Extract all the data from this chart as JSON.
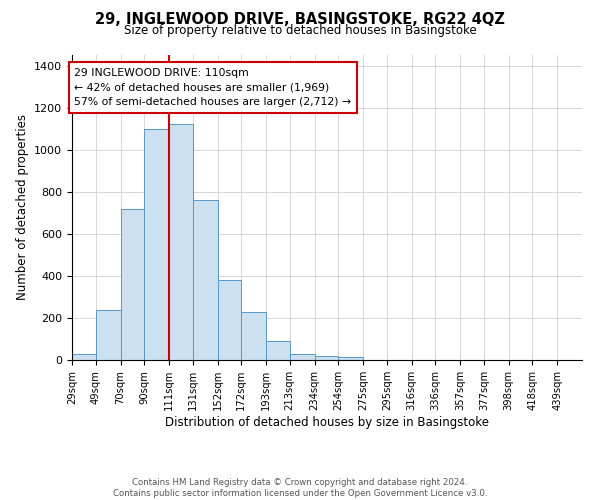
{
  "title": "29, INGLEWOOD DRIVE, BASINGSTOKE, RG22 4QZ",
  "subtitle": "Size of property relative to detached houses in Basingstoke",
  "xlabel": "Distribution of detached houses by size in Basingstoke",
  "ylabel": "Number of detached properties",
  "bin_labels": [
    "29sqm",
    "49sqm",
    "70sqm",
    "90sqm",
    "111sqm",
    "131sqm",
    "152sqm",
    "172sqm",
    "193sqm",
    "213sqm",
    "234sqm",
    "254sqm",
    "275sqm",
    "295sqm",
    "316sqm",
    "336sqm",
    "357sqm",
    "377sqm",
    "398sqm",
    "418sqm",
    "439sqm"
  ],
  "bar_heights": [
    30,
    240,
    720,
    1100,
    1120,
    760,
    380,
    230,
    90,
    30,
    20,
    15,
    0,
    0,
    0,
    0,
    0,
    0,
    0,
    0,
    0
  ],
  "bar_color": "#cce0f0",
  "bar_edge_color": "#5599cc",
  "ylim": [
    0,
    1450
  ],
  "yticks": [
    0,
    200,
    400,
    600,
    800,
    1000,
    1200,
    1400
  ],
  "property_line_x": 111,
  "annotation_text": "29 INGLEWOOD DRIVE: 110sqm\n← 42% of detached houses are smaller (1,969)\n57% of semi-detached houses are larger (2,712) →",
  "annotation_box_color": "#ffffff",
  "annotation_box_edge": "#cc0000",
  "property_line_color": "#cc0000",
  "footer_line1": "Contains HM Land Registry data © Crown copyright and database right 2024.",
  "footer_line2": "Contains public sector information licensed under the Open Government Licence v3.0.",
  "bin_edges": [
    29,
    49,
    70,
    90,
    111,
    131,
    152,
    172,
    193,
    213,
    234,
    254,
    275,
    295,
    316,
    336,
    357,
    377,
    398,
    418,
    439
  ]
}
